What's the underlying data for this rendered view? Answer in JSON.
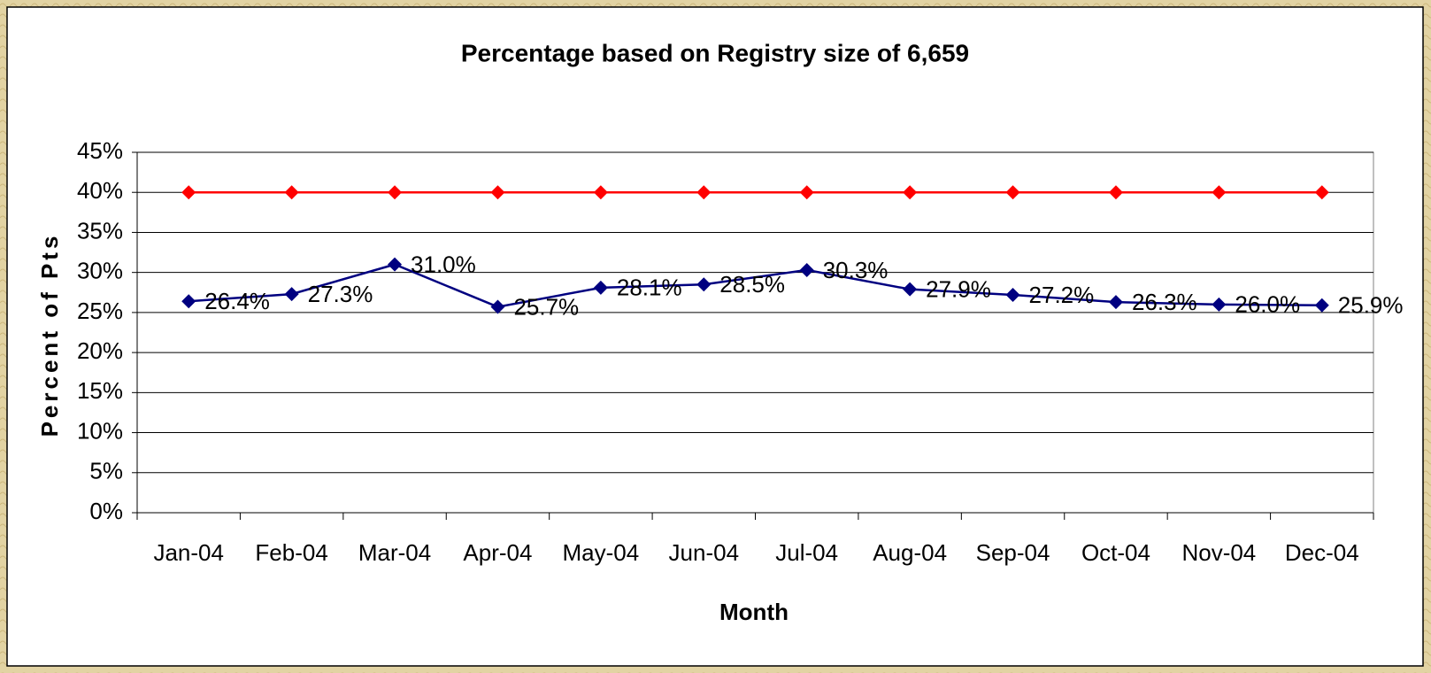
{
  "chart_data": {
    "type": "line",
    "title": "Percentage based on Registry size of 6,659",
    "x_label": "Month",
    "y_label": "Percent of Pts",
    "categories": [
      "Jan-04",
      "Feb-04",
      "Mar-04",
      "Apr-04",
      "May-04",
      "Jun-04",
      "Jul-04",
      "Aug-04",
      "Sep-04",
      "Oct-04",
      "Nov-04",
      "Dec-04"
    ],
    "series": [
      {
        "color": "#ff0000",
        "values": [
          40,
          40,
          40,
          40,
          40,
          40,
          40,
          40,
          40,
          40,
          40,
          40
        ]
      },
      {
        "color": "#000080",
        "values": [
          26.4,
          27.3,
          31.0,
          25.7,
          28.1,
          28.5,
          30.3,
          27.9,
          27.2,
          26.3,
          26.0,
          25.9
        ],
        "value_labels": [
          "26.4%",
          "27.3%",
          "31.0%",
          "25.7%",
          "28.1%",
          "28.5%",
          "30.3%",
          "27.9%",
          "27.2%",
          "26.3%",
          "26.0%",
          "25.9%"
        ]
      }
    ],
    "ylim": [
      0,
      45
    ],
    "yticks": [
      {
        "value": 0,
        "label": "0%"
      },
      {
        "value": 5,
        "label": "5%"
      },
      {
        "value": 10,
        "label": "10%"
      },
      {
        "value": 15,
        "label": "15%"
      },
      {
        "value": 20,
        "label": "20%"
      },
      {
        "value": 25,
        "label": "25%"
      },
      {
        "value": 30,
        "label": "30%"
      },
      {
        "value": 35,
        "label": "35%"
      },
      {
        "value": 40,
        "label": "40%"
      },
      {
        "value": 45,
        "label": "45%"
      }
    ],
    "grid": true
  }
}
